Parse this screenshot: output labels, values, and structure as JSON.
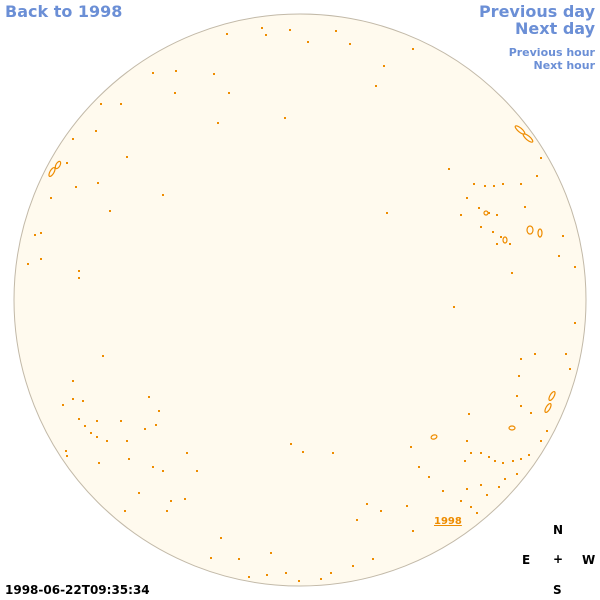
{
  "nav": {
    "back_label": "Back to 1998",
    "prev_day_label": "Previous day",
    "next_day_label": "Next day",
    "prev_hour_label": "Previous hour",
    "next_hour_label": "Next hour"
  },
  "timestamp": "1998-06-22T09:35:34",
  "disk_label": "1998",
  "compass": {
    "n": "N",
    "e": "E",
    "center": "+",
    "w": "W",
    "s": "S"
  },
  "colors": {
    "link": "#6b8fd6",
    "disk_fill": "#fffaee",
    "disk_stroke": "#c2b9a8",
    "contour": "#ee8c00"
  }
}
